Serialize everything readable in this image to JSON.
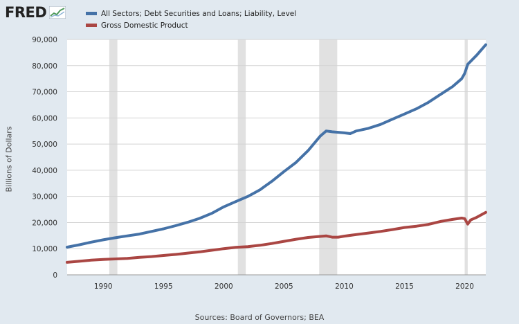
{
  "header": {
    "logo_text": "FRED",
    "logo_icon": "trend-line-icon"
  },
  "footer": {
    "source": "Sources: Board of Governors; BEA"
  },
  "colors": {
    "background": "#e1e9f0",
    "plot_background": "#ffffff",
    "recession_band": "#e1e1e1",
    "gridline": "#d3d3d3"
  },
  "chart_data": {
    "type": "line",
    "title": "",
    "xlabel": "",
    "ylabel": "Billions of Dollars",
    "xlim": [
      1987.0,
      2021.75
    ],
    "ylim": [
      0,
      90000
    ],
    "grid": true,
    "legend_position": "top-left",
    "x_ticks": [
      1990,
      1995,
      2000,
      2005,
      2010,
      2015,
      2020
    ],
    "x_tick_labels": [
      "1990",
      "1995",
      "2000",
      "2005",
      "2010",
      "2015",
      "2020"
    ],
    "y_ticks": [
      0,
      10000,
      20000,
      30000,
      40000,
      50000,
      60000,
      70000,
      80000,
      90000
    ],
    "y_tick_labels": [
      "0",
      "10,000",
      "20,000",
      "30,000",
      "40,000",
      "50,000",
      "60,000",
      "70,000",
      "80,000",
      "90,000"
    ],
    "recessions": [
      [
        1990.5,
        1991.17
      ],
      [
        2001.17,
        2001.83
      ],
      [
        2007.92,
        2009.42
      ],
      [
        2020.0,
        2020.25
      ]
    ],
    "series": [
      {
        "name": "All Sectors; Debt Securities and Loans; Liability, Level",
        "color": "#4572a7",
        "points": [
          [
            1987.0,
            10600
          ],
          [
            1988.0,
            11500
          ],
          [
            1989.0,
            12500
          ],
          [
            1990.0,
            13400
          ],
          [
            1991.0,
            14200
          ],
          [
            1992.0,
            14900
          ],
          [
            1993.0,
            15600
          ],
          [
            1994.0,
            16600
          ],
          [
            1995.0,
            17600
          ],
          [
            1996.0,
            18800
          ],
          [
            1997.0,
            20100
          ],
          [
            1998.0,
            21600
          ],
          [
            1999.0,
            23500
          ],
          [
            2000.0,
            26000
          ],
          [
            2001.0,
            28000
          ],
          [
            2002.0,
            30000
          ],
          [
            2003.0,
            32500
          ],
          [
            2004.0,
            35800
          ],
          [
            2005.0,
            39500
          ],
          [
            2006.0,
            43000
          ],
          [
            2007.0,
            47500
          ],
          [
            2008.0,
            53000
          ],
          [
            2008.5,
            55000
          ],
          [
            2009.0,
            54700
          ],
          [
            2010.0,
            54300
          ],
          [
            2010.5,
            54000
          ],
          [
            2011.0,
            55000
          ],
          [
            2012.0,
            56000
          ],
          [
            2013.0,
            57500
          ],
          [
            2014.0,
            59500
          ],
          [
            2015.0,
            61500
          ],
          [
            2016.0,
            63500
          ],
          [
            2017.0,
            66000
          ],
          [
            2018.0,
            69000
          ],
          [
            2019.0,
            72000
          ],
          [
            2019.75,
            75000
          ],
          [
            2020.0,
            77000
          ],
          [
            2020.25,
            80500
          ],
          [
            2021.0,
            84000
          ],
          [
            2021.75,
            88000
          ]
        ]
      },
      {
        "name": "Gross Domestic Product",
        "color": "#aa4643",
        "points": [
          [
            1987.0,
            4800
          ],
          [
            1988.0,
            5200
          ],
          [
            1989.0,
            5600
          ],
          [
            1990.0,
            5900
          ],
          [
            1991.0,
            6100
          ],
          [
            1992.0,
            6300
          ],
          [
            1993.0,
            6700
          ],
          [
            1994.0,
            7000
          ],
          [
            1995.0,
            7400
          ],
          [
            1996.0,
            7800
          ],
          [
            1997.0,
            8300
          ],
          [
            1998.0,
            8800
          ],
          [
            1999.0,
            9400
          ],
          [
            2000.0,
            10000
          ],
          [
            2001.0,
            10500
          ],
          [
            2002.0,
            10800
          ],
          [
            2003.0,
            11300
          ],
          [
            2004.0,
            12000
          ],
          [
            2005.0,
            12800
          ],
          [
            2006.0,
            13600
          ],
          [
            2007.0,
            14300
          ],
          [
            2008.0,
            14700
          ],
          [
            2008.5,
            14900
          ],
          [
            2009.0,
            14400
          ],
          [
            2009.5,
            14400
          ],
          [
            2010.0,
            14800
          ],
          [
            2011.0,
            15400
          ],
          [
            2012.0,
            16000
          ],
          [
            2013.0,
            16600
          ],
          [
            2014.0,
            17300
          ],
          [
            2015.0,
            18100
          ],
          [
            2016.0,
            18600
          ],
          [
            2017.0,
            19300
          ],
          [
            2018.0,
            20400
          ],
          [
            2019.0,
            21200
          ],
          [
            2019.75,
            21700
          ],
          [
            2020.0,
            21500
          ],
          [
            2020.25,
            19400
          ],
          [
            2020.5,
            21000
          ],
          [
            2021.0,
            22000
          ],
          [
            2021.75,
            23900
          ]
        ]
      }
    ]
  }
}
